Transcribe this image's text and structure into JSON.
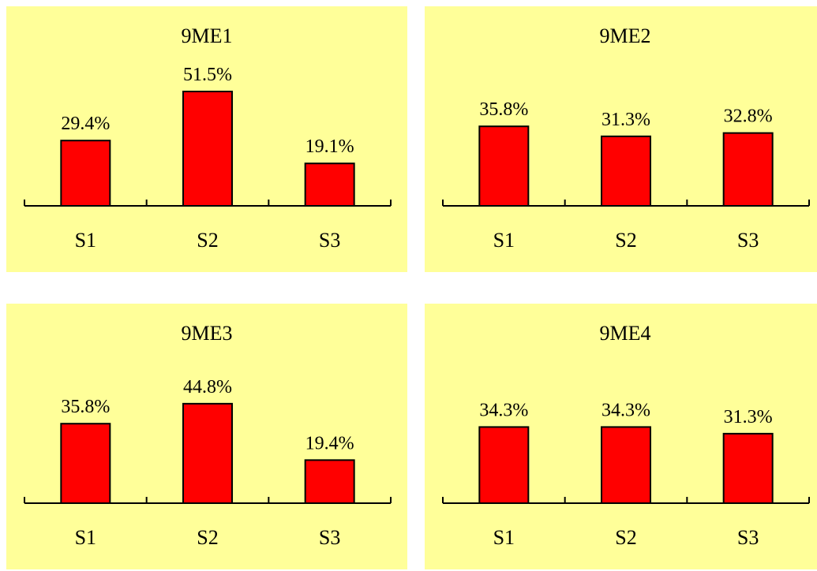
{
  "chart_data": [
    {
      "type": "bar",
      "title": "9ME1",
      "categories": [
        "S1",
        "S2",
        "S3"
      ],
      "values": [
        29.4,
        51.5,
        19.1
      ],
      "data_labels": [
        "29.4%",
        "51.5%",
        "19.1%"
      ],
      "ylim": [
        0,
        51.5
      ],
      "bar_color": "#ff0000",
      "background": "#ffff99"
    },
    {
      "type": "bar",
      "title": "9ME2",
      "categories": [
        "S1",
        "S2",
        "S3"
      ],
      "values": [
        35.8,
        31.3,
        32.8
      ],
      "data_labels": [
        "35.8%",
        "31.3%",
        "32.8%"
      ],
      "ylim": [
        0,
        51.5
      ],
      "bar_color": "#ff0000",
      "background": "#ffff99"
    },
    {
      "type": "bar",
      "title": "9ME3",
      "categories": [
        "S1",
        "S2",
        "S3"
      ],
      "values": [
        35.8,
        44.8,
        19.4
      ],
      "data_labels": [
        "35.8%",
        "44.8%",
        "19.4%"
      ],
      "ylim": [
        0,
        51.5
      ],
      "bar_color": "#ff0000",
      "background": "#ffff99"
    },
    {
      "type": "bar",
      "title": "9ME4",
      "categories": [
        "S1",
        "S2",
        "S3"
      ],
      "values": [
        34.3,
        34.3,
        31.3
      ],
      "data_labels": [
        "34.3%",
        "34.3%",
        "31.3%"
      ],
      "ylim": [
        0,
        51.5
      ],
      "bar_color": "#ff0000",
      "background": "#ffff99"
    }
  ]
}
